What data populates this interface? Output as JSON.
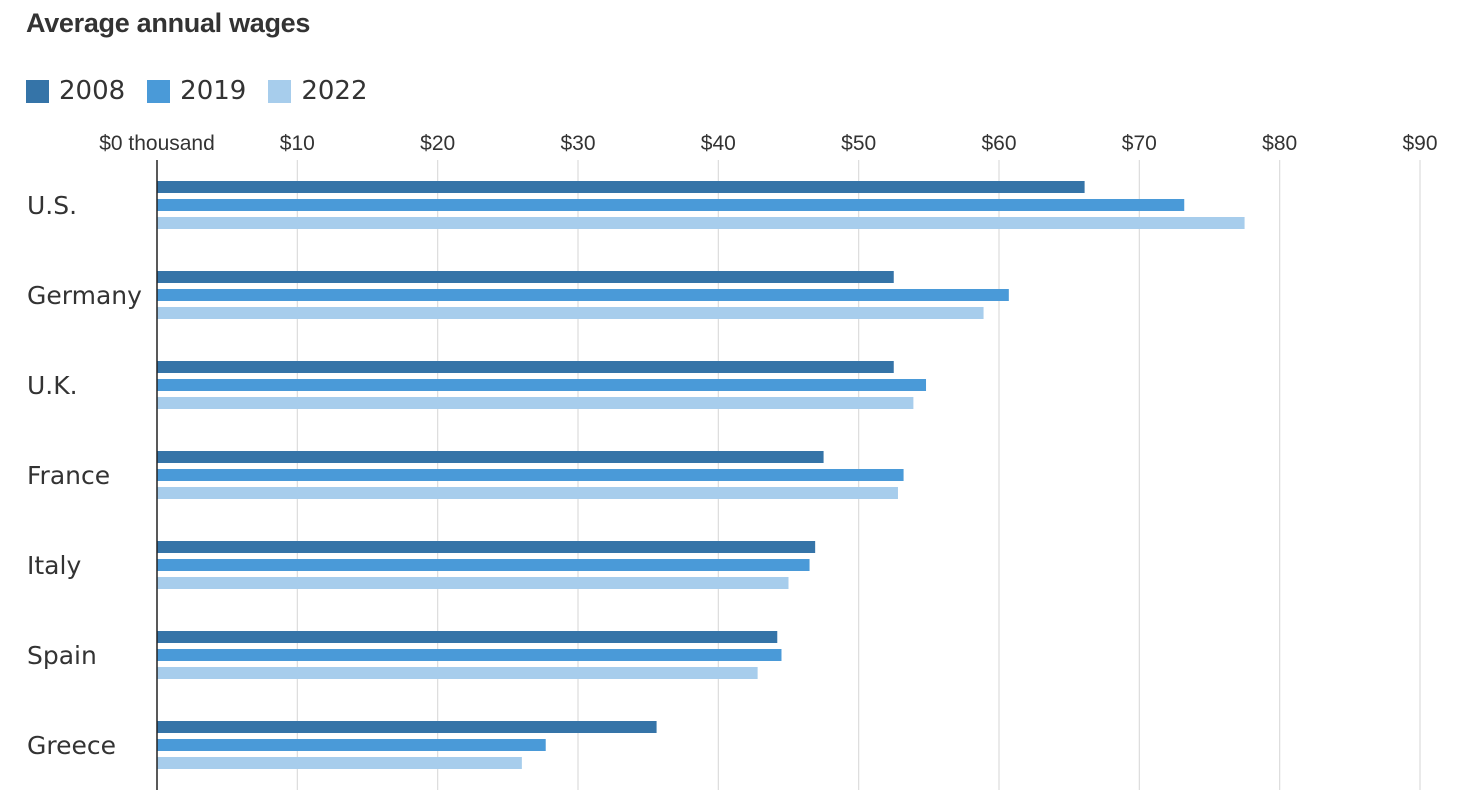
{
  "chart_data": {
    "type": "bar",
    "orientation": "horizontal",
    "title": "Average annual wages",
    "categories": [
      "U.S.",
      "Germany",
      "U.K.",
      "France",
      "Italy",
      "Spain",
      "Greece"
    ],
    "series": [
      {
        "name": "2008",
        "color": "#3574a8",
        "values": [
          66.1,
          52.5,
          52.5,
          47.5,
          46.9,
          44.2,
          35.6
        ]
      },
      {
        "name": "2019",
        "color": "#4a9ad8",
        "values": [
          73.2,
          60.7,
          54.8,
          53.2,
          46.5,
          44.5,
          27.7
        ]
      },
      {
        "name": "2022",
        "color": "#a7cdec",
        "values": [
          77.5,
          58.9,
          53.9,
          52.8,
          45.0,
          42.8,
          26.0
        ]
      }
    ],
    "xlim": [
      0,
      90
    ],
    "x_ticks": [
      0,
      10,
      20,
      30,
      40,
      50,
      60,
      70,
      80,
      90
    ],
    "x_tick_labels": [
      "$0 thousand",
      "$10",
      "$20",
      "$30",
      "$40",
      "$50",
      "$60",
      "$70",
      "$80",
      "$90"
    ],
    "axis_position": "top",
    "grid": true,
    "legend_position": "top-left"
  }
}
